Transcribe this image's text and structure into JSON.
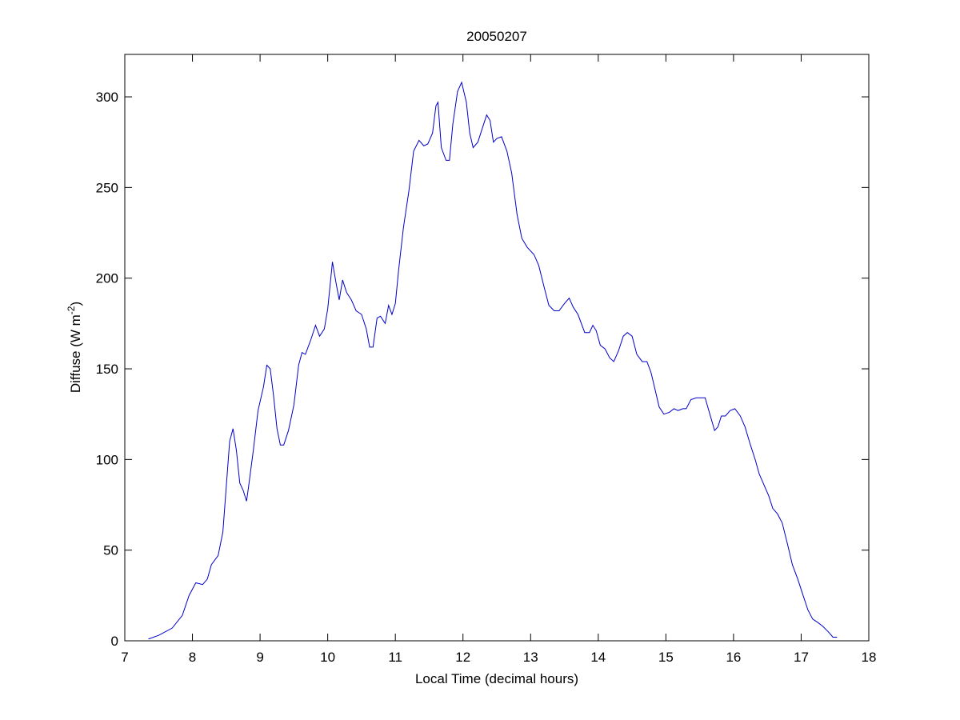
{
  "chart_data": {
    "type": "line",
    "title": "20050207",
    "xlabel": "Local Time (decimal hours)",
    "ylabel": [
      "Diffuse (W m",
      "-2",
      ")"
    ],
    "xlim": [
      7,
      18
    ],
    "xticks": [
      7,
      8,
      9,
      10,
      11,
      12,
      13,
      14,
      15,
      16,
      17,
      18
    ],
    "ylim": [
      0,
      323.4
    ],
    "yticks": [
      0,
      50,
      100,
      150,
      200,
      250,
      300
    ],
    "series": [
      {
        "color": "#0000cc",
        "x": [
          7.35,
          7.5,
          7.7,
          7.85,
          7.95,
          8.05,
          8.15,
          8.22,
          8.28,
          8.38,
          8.45,
          8.5,
          8.55,
          8.6,
          8.65,
          8.7,
          8.75,
          8.8,
          8.83,
          8.9,
          8.97,
          9.05,
          9.1,
          9.15,
          9.2,
          9.25,
          9.3,
          9.35,
          9.42,
          9.5,
          9.57,
          9.62,
          9.67,
          9.75,
          9.82,
          9.88,
          9.95,
          10.0,
          10.07,
          10.12,
          10.17,
          10.22,
          10.28,
          10.35,
          10.42,
          10.5,
          10.57,
          10.62,
          10.67,
          10.73,
          10.78,
          10.85,
          10.9,
          10.95,
          11.0,
          11.05,
          11.12,
          11.2,
          11.27,
          11.35,
          11.42,
          11.48,
          11.55,
          11.6,
          11.63,
          11.68,
          11.75,
          11.8,
          11.85,
          11.92,
          11.98,
          12.05,
          12.1,
          12.15,
          12.22,
          12.28,
          12.35,
          12.4,
          12.45,
          12.5,
          12.57,
          12.65,
          12.72,
          12.8,
          12.87,
          12.95,
          13.05,
          13.12,
          13.2,
          13.27,
          13.35,
          13.42,
          13.5,
          13.57,
          13.63,
          13.7,
          13.8,
          13.87,
          13.92,
          13.97,
          14.03,
          14.1,
          14.17,
          14.23,
          14.3,
          14.37,
          14.43,
          14.5,
          14.57,
          14.65,
          14.72,
          14.78,
          14.85,
          14.9,
          14.97,
          15.05,
          15.12,
          15.18,
          15.25,
          15.3,
          15.37,
          15.45,
          15.52,
          15.58,
          15.65,
          15.72,
          15.77,
          15.82,
          15.88,
          15.95,
          16.02,
          16.1,
          16.17,
          16.25,
          16.32,
          16.38,
          16.45,
          16.52,
          16.58,
          16.65,
          16.72,
          16.8,
          16.87,
          16.95,
          17.02,
          17.1,
          17.17,
          17.25,
          17.32,
          17.4,
          17.47,
          17.53
        ],
        "values": [
          1,
          3,
          7,
          14,
          25,
          32,
          31,
          34,
          42,
          47,
          60,
          85,
          110,
          117,
          105,
          87,
          83,
          77,
          85,
          105,
          127,
          140,
          152,
          150,
          135,
          117,
          108,
          108,
          116,
          130,
          152,
          159,
          158,
          166,
          174,
          168,
          172,
          183,
          209,
          198,
          188,
          199,
          192,
          188,
          182,
          180,
          172,
          162,
          162,
          178,
          179,
          175,
          185,
          180,
          186,
          205,
          228,
          248,
          270,
          276,
          273,
          274,
          280,
          295,
          297,
          272,
          265,
          265,
          285,
          303,
          308,
          297,
          280,
          272,
          275,
          282,
          290,
          287,
          275,
          277,
          278,
          270,
          258,
          235,
          222,
          217,
          213,
          207,
          195,
          185,
          182,
          182,
          186,
          189,
          184,
          180,
          170,
          170,
          174,
          171,
          163,
          161,
          156,
          154,
          160,
          168,
          170,
          168,
          158,
          154,
          154,
          148,
          137,
          129,
          125,
          126,
          128,
          127,
          128,
          128,
          133,
          134,
          134,
          134,
          125,
          116,
          118,
          124,
          124,
          127,
          128,
          124,
          118,
          108,
          100,
          92,
          86,
          80,
          73,
          70,
          65,
          53,
          42,
          34,
          26,
          17,
          12,
          10,
          8,
          5,
          2,
          2
        ]
      }
    ]
  }
}
